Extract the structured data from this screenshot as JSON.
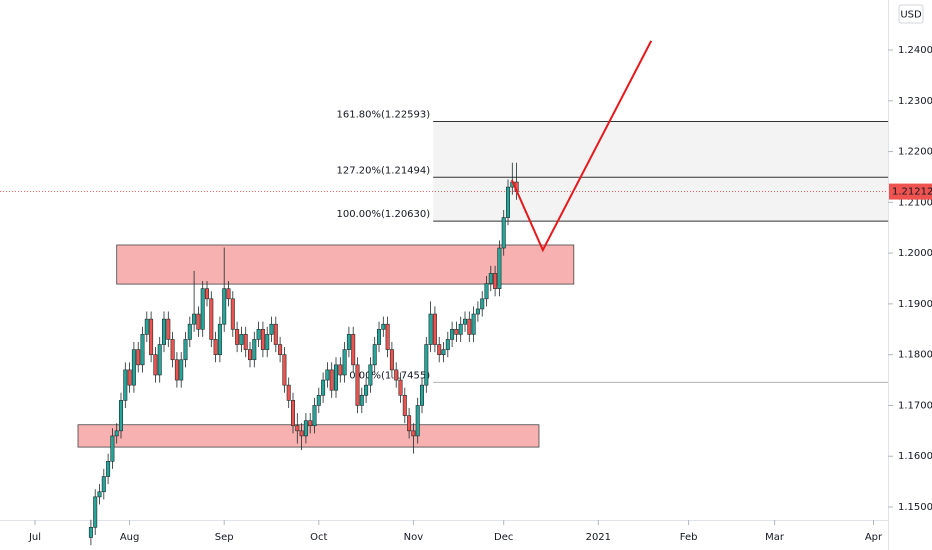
{
  "chart_data": {
    "type": "candlestick",
    "currency": "USD",
    "xlim": [
      -8.14,
      198.37
    ],
    "xticks": [
      {
        "value": 0,
        "label": "Jul"
      },
      {
        "value": 22,
        "label": "Aug"
      },
      {
        "value": 44,
        "label": "Sep"
      },
      {
        "value": 66,
        "label": "Oct"
      },
      {
        "value": 88,
        "label": "Nov"
      },
      {
        "value": 109,
        "label": "Dec"
      },
      {
        "value": 131,
        "label": "2021"
      },
      {
        "value": 152,
        "label": "Feb"
      },
      {
        "value": 172,
        "label": "Mar"
      },
      {
        "value": 195,
        "label": "Apr"
      }
    ],
    "ylim": [
      1.14744,
      1.24985
    ],
    "yticks": [
      {
        "value": 1.15,
        "label": "1.15000"
      },
      {
        "value": 1.16,
        "label": "1.16000"
      },
      {
        "value": 1.17,
        "label": "1.17000"
      },
      {
        "value": 1.18,
        "label": "1.18000"
      },
      {
        "value": 1.19,
        "label": "1.19000"
      },
      {
        "value": 1.2,
        "label": "1.20000"
      },
      {
        "value": 1.21,
        "label": "1.21000"
      },
      {
        "value": 1.22,
        "label": "1.22000"
      },
      {
        "value": 1.23,
        "label": "1.23000"
      },
      {
        "value": 1.24,
        "label": "1.24000"
      }
    ],
    "up_color": "#26a69a",
    "down_color": "#ef5350",
    "candles": [
      [
        13,
        1.144,
        1.1475,
        1.1425,
        1.146
      ],
      [
        14,
        1.146,
        1.1535,
        1.1445,
        1.152
      ],
      [
        15,
        1.152,
        1.1545,
        1.1505,
        1.153
      ],
      [
        16,
        1.153,
        1.1575,
        1.1515,
        1.156
      ],
      [
        17,
        1.156,
        1.1605,
        1.1545,
        1.159
      ],
      [
        18,
        1.159,
        1.1655,
        1.1575,
        1.164
      ],
      [
        19,
        1.164,
        1.1665,
        1.1625,
        1.165
      ],
      [
        20,
        1.165,
        1.1725,
        1.1635,
        1.171
      ],
      [
        21,
        1.171,
        1.1785,
        1.1695,
        1.177
      ],
      [
        22,
        1.177,
        1.1785,
        1.1725,
        1.174
      ],
      [
        23,
        1.174,
        1.1825,
        1.1725,
        1.181
      ],
      [
        24,
        1.181,
        1.1825,
        1.1765,
        1.178
      ],
      [
        25,
        1.178,
        1.1855,
        1.1765,
        1.184
      ],
      [
        26,
        1.184,
        1.1885,
        1.1825,
        1.187
      ],
      [
        27,
        1.187,
        1.1885,
        1.1785,
        1.18
      ],
      [
        28,
        1.18,
        1.1815,
        1.1745,
        1.176
      ],
      [
        29,
        1.176,
        1.1835,
        1.1745,
        1.182
      ],
      [
        30,
        1.182,
        1.1885,
        1.1805,
        1.187
      ],
      [
        31,
        1.187,
        1.1885,
        1.1815,
        1.183
      ],
      [
        32,
        1.183,
        1.1845,
        1.1775,
        1.179
      ],
      [
        33,
        1.179,
        1.1805,
        1.1735,
        1.175
      ],
      [
        34,
        1.175,
        1.1805,
        1.1735,
        1.179
      ],
      [
        35,
        1.179,
        1.1845,
        1.1775,
        1.183
      ],
      [
        36,
        1.183,
        1.1875,
        1.1815,
        1.186
      ],
      [
        37,
        1.186,
        1.1965,
        1.1845,
        1.188
      ],
      [
        38,
        1.188,
        1.1895,
        1.1835,
        1.185
      ],
      [
        39,
        1.185,
        1.1945,
        1.1835,
        1.193
      ],
      [
        40,
        1.193,
        1.1945,
        1.1895,
        1.191
      ],
      [
        41,
        1.191,
        1.1925,
        1.1815,
        1.183
      ],
      [
        42,
        1.183,
        1.1845,
        1.1785,
        1.18
      ],
      [
        43,
        1.18,
        1.1875,
        1.1785,
        1.186
      ],
      [
        44,
        1.186,
        1.2011,
        1.1845,
        1.193
      ],
      [
        45,
        1.193,
        1.1945,
        1.1895,
        1.191
      ],
      [
        46,
        1.191,
        1.1925,
        1.1835,
        1.185
      ],
      [
        47,
        1.185,
        1.1865,
        1.1805,
        1.182
      ],
      [
        48,
        1.182,
        1.1855,
        1.1805,
        1.184
      ],
      [
        49,
        1.184,
        1.1855,
        1.1795,
        1.181
      ],
      [
        50,
        1.181,
        1.1825,
        1.1775,
        1.179
      ],
      [
        51,
        1.179,
        1.1845,
        1.1775,
        1.183
      ],
      [
        52,
        1.183,
        1.1865,
        1.1815,
        1.185
      ],
      [
        53,
        1.185,
        1.1865,
        1.1795,
        1.181
      ],
      [
        54,
        1.181,
        1.1855,
        1.1795,
        1.184
      ],
      [
        55,
        1.184,
        1.1875,
        1.1825,
        1.186
      ],
      [
        56,
        1.186,
        1.1875,
        1.1805,
        1.182
      ],
      [
        57,
        1.182,
        1.1835,
        1.1785,
        1.18
      ],
      [
        58,
        1.18,
        1.1815,
        1.1725,
        1.174
      ],
      [
        59,
        1.174,
        1.1755,
        1.1695,
        1.171
      ],
      [
        60,
        1.171,
        1.1725,
        1.1645,
        1.166
      ],
      [
        61,
        1.166,
        1.1685,
        1.1625,
        1.165
      ],
      [
        62,
        1.165,
        1.1665,
        1.1612,
        1.164
      ],
      [
        63,
        1.164,
        1.1685,
        1.1625,
        1.167
      ],
      [
        64,
        1.167,
        1.1685,
        1.1645,
        1.166
      ],
      [
        65,
        1.166,
        1.1715,
        1.1645,
        1.17
      ],
      [
        66,
        1.17,
        1.1735,
        1.1685,
        1.172
      ],
      [
        67,
        1.172,
        1.1765,
        1.1705,
        1.175
      ],
      [
        68,
        1.175,
        1.1785,
        1.1735,
        1.177
      ],
      [
        69,
        1.177,
        1.1785,
        1.1715,
        1.173
      ],
      [
        70,
        1.173,
        1.1795,
        1.1715,
        1.178
      ],
      [
        71,
        1.178,
        1.1795,
        1.1745,
        1.176
      ],
      [
        72,
        1.176,
        1.1825,
        1.1745,
        1.181
      ],
      [
        73,
        1.181,
        1.1855,
        1.1795,
        1.184
      ],
      [
        74,
        1.184,
        1.1855,
        1.1765,
        1.178
      ],
      [
        75,
        1.178,
        1.1795,
        1.1685,
        1.17
      ],
      [
        76,
        1.17,
        1.1735,
        1.1685,
        1.172
      ],
      [
        77,
        1.172,
        1.1755,
        1.1705,
        1.174
      ],
      [
        78,
        1.174,
        1.1795,
        1.1725,
        1.178
      ],
      [
        79,
        1.178,
        1.1835,
        1.1765,
        1.182
      ],
      [
        80,
        1.182,
        1.1865,
        1.1805,
        1.185
      ],
      [
        81,
        1.185,
        1.1875,
        1.1835,
        1.186
      ],
      [
        82,
        1.186,
        1.1875,
        1.1795,
        1.181
      ],
      [
        83,
        1.181,
        1.1825,
        1.1755,
        1.177
      ],
      [
        84,
        1.177,
        1.1785,
        1.1735,
        1.175
      ],
      [
        85,
        1.175,
        1.1765,
        1.1705,
        1.172
      ],
      [
        86,
        1.172,
        1.1735,
        1.1665,
        1.168
      ],
      [
        87,
        1.168,
        1.1695,
        1.1635,
        1.165
      ],
      [
        88,
        1.165,
        1.1665,
        1.1605,
        1.164
      ],
      [
        89,
        1.164,
        1.1715,
        1.1625,
        1.17
      ],
      [
        90,
        1.17,
        1.1755,
        1.1685,
        1.174
      ],
      [
        91,
        1.174,
        1.1835,
        1.1725,
        1.182
      ],
      [
        92,
        1.182,
        1.1905,
        1.1805,
        1.188
      ],
      [
        93,
        1.188,
        1.1895,
        1.1805,
        1.182
      ],
      [
        94,
        1.182,
        1.1835,
        1.1785,
        1.18
      ],
      [
        95,
        1.18,
        1.1825,
        1.1785,
        1.181
      ],
      [
        96,
        1.181,
        1.1845,
        1.1795,
        1.183
      ],
      [
        97,
        1.183,
        1.1865,
        1.1815,
        1.185
      ],
      [
        98,
        1.185,
        1.1865,
        1.1825,
        1.184
      ],
      [
        99,
        1.184,
        1.1875,
        1.1825,
        1.186
      ],
      [
        100,
        1.186,
        1.1885,
        1.1845,
        1.187
      ],
      [
        101,
        1.187,
        1.1885,
        1.1825,
        1.184
      ],
      [
        102,
        1.184,
        1.1895,
        1.1825,
        1.188
      ],
      [
        103,
        1.188,
        1.1905,
        1.1865,
        1.189
      ],
      [
        104,
        1.189,
        1.1925,
        1.1875,
        1.191
      ],
      [
        105,
        1.191,
        1.1955,
        1.1895,
        1.194
      ],
      [
        106,
        1.194,
        1.1975,
        1.1925,
        1.196
      ],
      [
        107,
        1.196,
        1.1975,
        1.1915,
        1.193
      ],
      [
        108,
        1.193,
        1.2025,
        1.1915,
        1.201
      ],
      [
        109,
        1.201,
        1.2085,
        1.1995,
        1.207
      ],
      [
        110,
        1.207,
        1.2145,
        1.2055,
        1.213
      ],
      [
        111,
        1.213,
        1.2178,
        1.2115,
        1.214
      ],
      [
        112,
        1.214,
        1.2178,
        1.2105,
        1.2121
      ]
    ],
    "last_price": 1.21212,
    "zones": [
      {
        "x": [
          19,
          125.3
        ],
        "y": [
          1.1939,
          1.2016
        ],
        "color": "#f7a8a8"
      },
      {
        "x": [
          10,
          117.2
        ],
        "y": [
          1.1618,
          1.1662
        ],
        "color": "#f7a8a8"
      }
    ],
    "fib": {
      "x": [
        92.6,
        198.4
      ],
      "levels": [
        {
          "value": 1.22593,
          "label": "161.80%(1.22593)"
        },
        {
          "value": 1.21494,
          "label": "127.20%(1.21494)"
        },
        {
          "value": 1.2063,
          "label": "100.00%(1.20630)"
        },
        {
          "value": 1.17455,
          "label": "0.00%(1.17455)"
        }
      ]
    },
    "projection": {
      "x": [
        110.9,
        118.1,
        143.3
      ],
      "y": [
        1.2144,
        1.2006,
        1.2418
      ],
      "color": "#e8191c"
    }
  }
}
